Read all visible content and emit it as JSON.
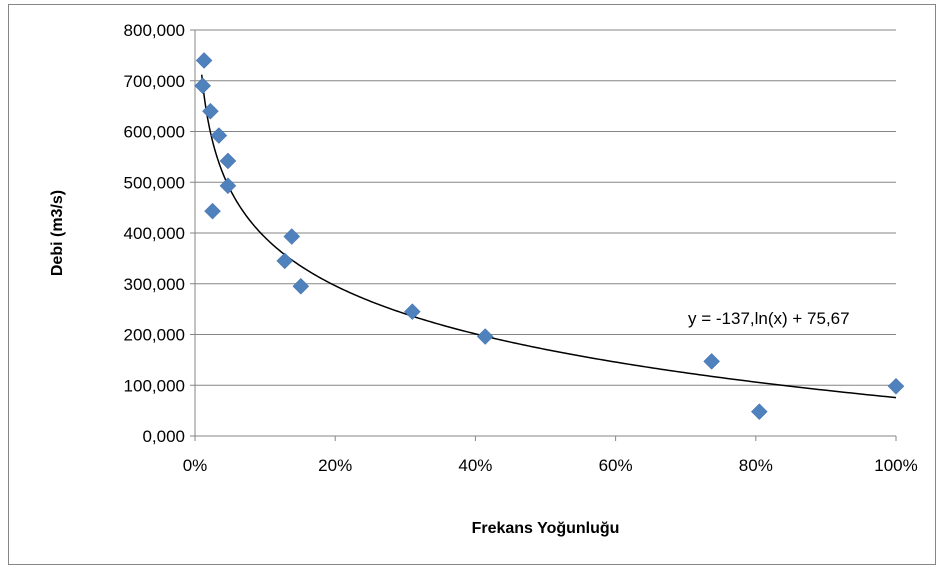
{
  "chart_data": {
    "type": "scatter",
    "title": "",
    "xlabel": "Frekans Yoğunluğu",
    "ylabel": "Debi (m3/s)",
    "xlim": [
      0,
      1
    ],
    "ylim": [
      0,
      800
    ],
    "x_ticks": [
      0,
      0.2,
      0.4,
      0.6,
      0.8,
      1.0
    ],
    "x_tick_labels": [
      "0%",
      "20%",
      "40%",
      "60%",
      "80%",
      "100%"
    ],
    "y_ticks": [
      0,
      100,
      200,
      300,
      400,
      500,
      600,
      700,
      800
    ],
    "y_tick_labels": [
      "0,000",
      "100,000",
      "200,000",
      "300,000",
      "400,000",
      "500,000",
      "600,000",
      "700,000",
      "800,000"
    ],
    "grid": "horizontal",
    "legend": "none",
    "series": [
      {
        "marker": "diamond",
        "color": "#4f81bd",
        "points": [
          {
            "x": 0.013,
            "y": 740
          },
          {
            "x": 0.011,
            "y": 690
          },
          {
            "x": 0.022,
            "y": 640
          },
          {
            "x": 0.034,
            "y": 592
          },
          {
            "x": 0.047,
            "y": 542
          },
          {
            "x": 0.047,
            "y": 493
          },
          {
            "x": 0.025,
            "y": 443
          },
          {
            "x": 0.138,
            "y": 393
          },
          {
            "x": 0.128,
            "y": 345
          },
          {
            "x": 0.151,
            "y": 295
          },
          {
            "x": 0.31,
            "y": 245
          },
          {
            "x": 0.414,
            "y": 196
          },
          {
            "x": 0.737,
            "y": 147
          },
          {
            "x": 0.805,
            "y": 48
          },
          {
            "x": 1.0,
            "y": 98
          }
        ]
      }
    ],
    "trendline": {
      "type": "logarithmic",
      "a": -137,
      "b": 75.67,
      "color": "#000000",
      "label": "y = -137,ln(x) + 75,67"
    }
  }
}
